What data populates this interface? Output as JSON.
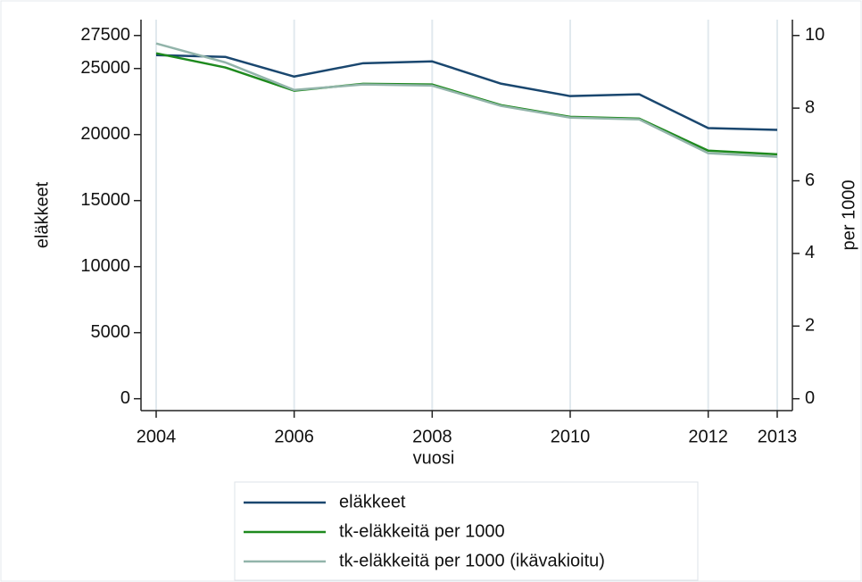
{
  "chart_data": {
    "type": "line",
    "x": [
      2004,
      2005,
      2006,
      2007,
      2008,
      2009,
      2010,
      2011,
      2012,
      2013
    ],
    "xlim": [
      2003.78,
      2013.22
    ],
    "xticks": [
      2004,
      2006,
      2008,
      2010,
      2012,
      2013
    ],
    "ylim": [
      -900,
      28700
    ],
    "yticks": [
      0,
      5000,
      10000,
      15000,
      20000,
      25000,
      27500
    ],
    "y2lim": [
      -0.327,
      10.436
    ],
    "y2ticks": [
      0,
      2,
      4,
      6,
      8,
      10
    ],
    "xlabel": "vuosi",
    "ylabel": "eläkkeet",
    "y2label": "per 1000",
    "grid": true,
    "legend": "bottom",
    "series": [
      {
        "name": "eläkkeet",
        "color": "#1a476f",
        "axis": "y",
        "values": [
          26010,
          25880,
          24390,
          25400,
          25540,
          23850,
          22910,
          23050,
          20490,
          20350
        ]
      },
      {
        "name": "tk-eläkkeitä per 1000",
        "color": "#1e8a1e",
        "axis": "y2",
        "values": [
          9.51,
          9.12,
          8.48,
          8.67,
          8.65,
          8.08,
          7.76,
          7.71,
          6.83,
          6.73
        ]
      },
      {
        "name": "tk-eläkkeitä per 1000 (ikävakioitu)",
        "color": "#92b4aa",
        "axis": "y2",
        "values": [
          9.78,
          9.26,
          8.5,
          8.65,
          8.62,
          8.06,
          7.74,
          7.69,
          6.76,
          6.66
        ]
      }
    ]
  }
}
